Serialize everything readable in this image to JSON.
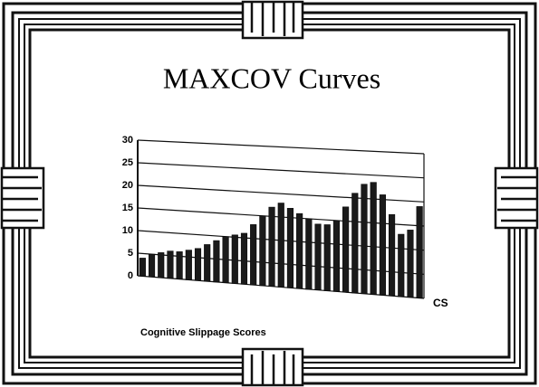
{
  "chart_data": {
    "type": "bar",
    "title": "MAXCOV Curves",
    "x_label": "Cognitive Slippage Scores",
    "categories": [
      null,
      null,
      null,
      null,
      null,
      null,
      null,
      null,
      null,
      null,
      null,
      null,
      null,
      null,
      null,
      null,
      null,
      null,
      null,
      null,
      null,
      null,
      null,
      null,
      null,
      null,
      null,
      null,
      null,
      null,
      null
    ],
    "series": [
      {
        "name": "CS",
        "color": "#1a1a1a",
        "values": [
          4,
          5,
          5.5,
          6,
          6,
          6.5,
          7,
          8,
          9,
          10,
          10.5,
          11,
          13,
          15,
          17,
          18,
          17,
          16,
          15,
          14,
          14,
          15,
          18,
          21,
          23,
          23.5,
          21,
          17,
          13,
          14,
          19
        ]
      }
    ],
    "ylim": [
      0,
      30
    ],
    "yticks": [
      0,
      5,
      10,
      15,
      20,
      25,
      30
    ],
    "grid": true
  }
}
